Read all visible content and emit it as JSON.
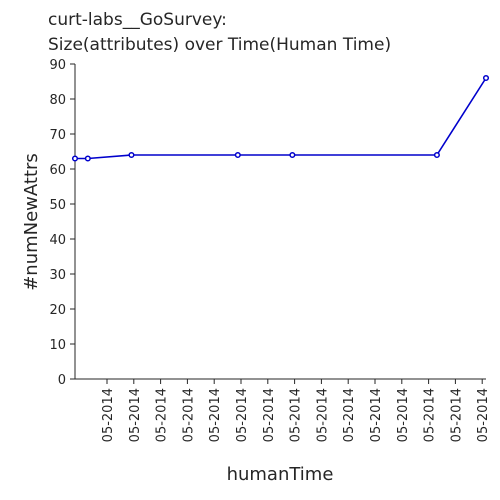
{
  "chart_data": {
    "type": "line",
    "title_lines": [
      "curt-labs__GoSurvey:",
      "Size(attributes) over Time(Human Time)"
    ],
    "xlabel": "humanTime",
    "ylabel": "#numNewAttrs",
    "ylim": [
      0,
      90
    ],
    "yticks": [
      0,
      10,
      20,
      30,
      40,
      50,
      60,
      70,
      80,
      90
    ],
    "xtick_labels": [
      "05-2014",
      "05-2014",
      "05-2014",
      "05-2014",
      "05-2014",
      "05-2014",
      "05-2014",
      "05-2014",
      "05-2014",
      "05-2014",
      "05-2014",
      "05-2014",
      "05-2014",
      "05-2014",
      "05-2014"
    ],
    "grid": false,
    "series": [
      {
        "color": "#0000cc",
        "x": [
          0,
          0.47,
          2.07,
          5.97,
          7.97,
          13.27,
          15.07
        ],
        "values": [
          63,
          63,
          64,
          64,
          64,
          64,
          86
        ]
      }
    ],
    "xlim": [
      0,
      15.07
    ]
  }
}
